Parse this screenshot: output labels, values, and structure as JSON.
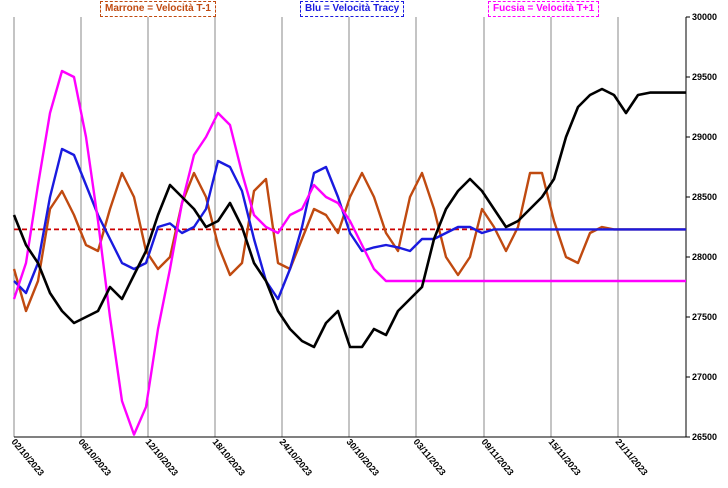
{
  "chart_data": {
    "type": "line",
    "legend": [
      {
        "label": "Marrone = Velocità T-1",
        "color": "#c04a10"
      },
      {
        "label": "Blu = Velocità Tracy",
        "color": "#1a1adf"
      },
      {
        "label": "Fucsia = Velocità T+1",
        "color": "#ff00ff"
      }
    ],
    "y_axis": {
      "position": "right",
      "ylim": [
        26500,
        30000
      ],
      "ticks": [
        "30000",
        "29500",
        "29000",
        "28500",
        "28000",
        "27500",
        "27000",
        "26500"
      ]
    },
    "x_axis": {
      "ticks": [
        "02/10/2023",
        "06/10/2023",
        "12/10/2023",
        "18/10/2023",
        "24/10/2023",
        "30/10/2023",
        "03/11/2023",
        "09/11/2023",
        "15/11/2023",
        "21/11/2023"
      ]
    },
    "reference_line": {
      "value": 28230,
      "color": "#cc0000",
      "style": "dashed"
    },
    "series": [
      {
        "id": "price",
        "color": "#000000",
        "x": [
          0,
          1,
          2,
          3,
          4,
          5,
          6,
          7,
          8,
          9,
          10,
          11,
          12,
          13,
          14,
          15,
          16,
          17,
          18,
          19,
          20,
          21,
          22,
          23,
          24,
          25,
          26,
          27,
          28,
          29,
          30,
          31,
          32,
          33,
          34,
          35,
          36,
          37,
          38,
          39,
          40,
          41,
          42,
          43,
          44,
          45,
          46,
          47,
          48,
          49,
          50,
          51,
          52,
          53,
          54,
          55,
          56
        ],
        "values": [
          28350,
          28100,
          27950,
          27700,
          27550,
          27450,
          27500,
          27550,
          27750,
          27650,
          27850,
          28050,
          28350,
          28600,
          28500,
          28400,
          28250,
          28300,
          28450,
          28250,
          27950,
          27800,
          27550,
          27400,
          27300,
          27250,
          27450,
          27550,
          27250,
          27250,
          27400,
          27350,
          27550,
          27650,
          27750,
          28150,
          28400,
          28550,
          28650,
          28550,
          28400,
          28250,
          28300,
          28400,
          28500,
          28650,
          29000,
          29250,
          29350,
          29400,
          29350,
          29200,
          29350,
          29370,
          29370,
          29370,
          29370
        ]
      },
      {
        "id": "marrone",
        "color": "#c04a10",
        "x": [
          0,
          1,
          2,
          3,
          4,
          5,
          6,
          7,
          8,
          9,
          10,
          11,
          12,
          13,
          14,
          15,
          16,
          17,
          18,
          19,
          20,
          21,
          22,
          23,
          24,
          25,
          26,
          27,
          28,
          29,
          30,
          31,
          32,
          33,
          34,
          35,
          36,
          37,
          38,
          39,
          40,
          41,
          42,
          43,
          44,
          45,
          46,
          47,
          48,
          49,
          50,
          51,
          52,
          53,
          54,
          55,
          56
        ],
        "values": [
          27900,
          27550,
          27800,
          28400,
          28550,
          28350,
          28100,
          28050,
          28400,
          28700,
          28500,
          28050,
          27900,
          28000,
          28450,
          28700,
          28500,
          28100,
          27850,
          27950,
          28550,
          28650,
          27950,
          27900,
          28150,
          28400,
          28350,
          28200,
          28500,
          28700,
          28500,
          28200,
          28050,
          28500,
          28700,
          28400,
          28000,
          27850,
          28000,
          28400,
          28250,
          28050,
          28250,
          28700,
          28700,
          28300,
          28000,
          27950,
          28200,
          28250,
          28230,
          28230,
          28230,
          28230,
          28230,
          28230,
          28230
        ]
      },
      {
        "id": "blu",
        "color": "#1a1adf",
        "x": [
          0,
          1,
          2,
          3,
          4,
          5,
          6,
          7,
          8,
          9,
          10,
          11,
          12,
          13,
          14,
          15,
          16,
          17,
          18,
          19,
          20,
          21,
          22,
          23,
          24,
          25,
          26,
          27,
          28,
          29,
          30,
          31,
          32,
          33,
          34,
          35,
          36,
          37,
          38,
          39,
          40,
          41,
          42,
          43,
          44,
          45,
          46,
          47,
          48,
          49,
          50,
          51,
          52,
          53,
          54,
          55,
          56
        ],
        "values": [
          27800,
          27700,
          27950,
          28500,
          28900,
          28850,
          28600,
          28350,
          28150,
          27950,
          27900,
          27950,
          28250,
          28280,
          28200,
          28250,
          28400,
          28800,
          28750,
          28550,
          28150,
          27800,
          27650,
          27900,
          28250,
          28700,
          28750,
          28500,
          28200,
          28050,
          28080,
          28100,
          28080,
          28050,
          28150,
          28150,
          28200,
          28250,
          28250,
          28200,
          28230,
          28230,
          28230,
          28230,
          28230,
          28230,
          28230,
          28230,
          28230,
          28230,
          28230,
          28230,
          28230,
          28230,
          28230,
          28230,
          28230
        ]
      },
      {
        "id": "fucsia",
        "color": "#ff00ff",
        "x": [
          0,
          1,
          2,
          3,
          4,
          5,
          6,
          7,
          8,
          9,
          10,
          11,
          12,
          13,
          14,
          15,
          16,
          17,
          18,
          19,
          20,
          21,
          22,
          23,
          24,
          25,
          26,
          27,
          28,
          29,
          30,
          31,
          32,
          33,
          34,
          35,
          36,
          37,
          38,
          39,
          40,
          41,
          42,
          43,
          44,
          45,
          46,
          47,
          48,
          49,
          50,
          51,
          52,
          53,
          54,
          55,
          56
        ],
        "values": [
          27650,
          27950,
          28600,
          29200,
          29550,
          29500,
          29000,
          28300,
          27500,
          26800,
          26520,
          26750,
          27400,
          27900,
          28450,
          28850,
          29000,
          29200,
          29100,
          28700,
          28350,
          28250,
          28200,
          28350,
          28400,
          28600,
          28500,
          28450,
          28300,
          28100,
          27900,
          27800,
          27800,
          27800,
          27800,
          27800,
          27800,
          27800,
          27800,
          27800,
          27800,
          27800,
          27800,
          27800,
          27800,
          27800,
          27800,
          27800,
          27800,
          27800,
          27800,
          27800,
          27800,
          27800,
          27800,
          27800,
          27800
        ]
      }
    ]
  }
}
